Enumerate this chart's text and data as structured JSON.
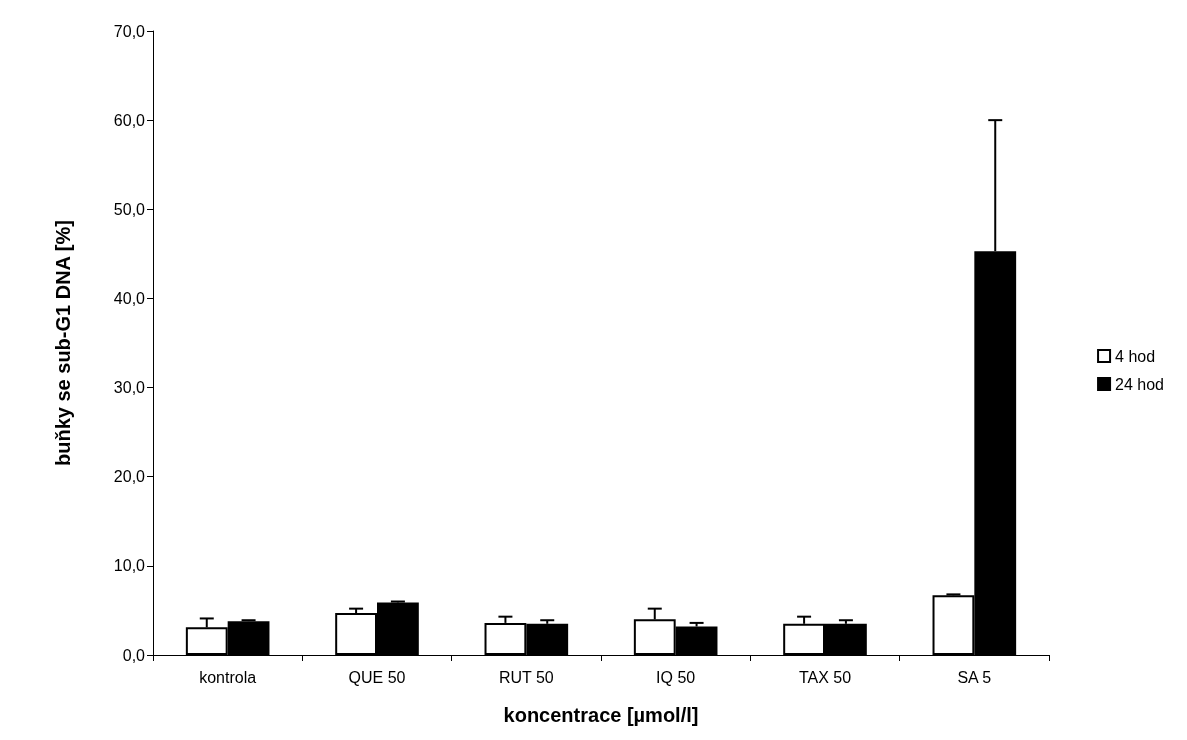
{
  "chart_data": {
    "type": "bar",
    "xlabel": "koncentrace [µmol/l]",
    "ylabel": "buňky se sub-G1 DNA [%]",
    "categories": [
      "kontrola",
      "QUE 50",
      "RUT 50",
      "IQ 50",
      "TAX 50",
      "SA 5"
    ],
    "series": [
      {
        "name": "4 hod",
        "color": "#ffffff",
        "values": [
          3.1,
          4.7,
          3.6,
          4.0,
          3.5,
          6.7
        ],
        "errors": [
          [
            3.1,
            4.1
          ],
          [
            4.7,
            5.2
          ],
          [
            3.6,
            4.3
          ],
          [
            4.0,
            5.2
          ],
          [
            3.5,
            4.3
          ],
          [
            6.7,
            6.8
          ]
        ]
      },
      {
        "name": "24 hod",
        "color": "#000000",
        "values": [
          3.8,
          5.9,
          3.5,
          3.2,
          3.5,
          45.3
        ],
        "errors": [
          [
            3.8,
            3.9
          ],
          [
            5.9,
            6.0
          ],
          [
            3.5,
            3.9
          ],
          [
            3.2,
            3.6
          ],
          [
            3.5,
            3.9
          ],
          [
            45.3,
            60.0
          ]
        ]
      }
    ],
    "ylim": [
      0,
      70
    ],
    "yticks": [
      {
        "value": 0,
        "label": "0,0"
      },
      {
        "value": 10,
        "label": "10,0"
      },
      {
        "value": 20,
        "label": "20,0"
      },
      {
        "value": 30,
        "label": "30,0"
      },
      {
        "value": 40,
        "label": "40,0"
      },
      {
        "value": 50,
        "label": "50,0"
      },
      {
        "value": 60,
        "label": "60,0"
      },
      {
        "value": 70,
        "label": "70,0"
      }
    ],
    "grid": false,
    "legend": "right"
  }
}
